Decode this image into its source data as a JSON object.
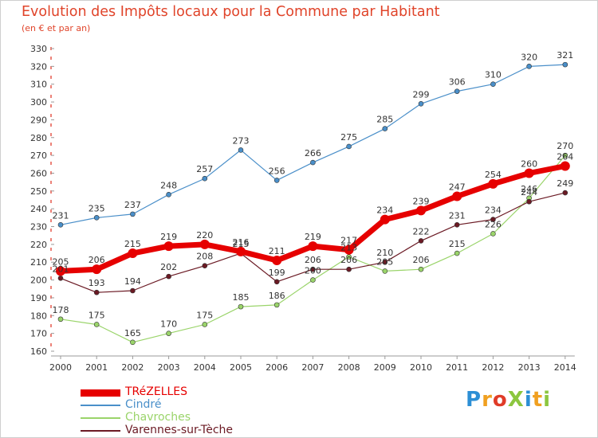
{
  "title": "Evolution des Impôts locaux pour la Commune par Habitant",
  "subtitle": "(en € et par an)",
  "brand": {
    "text": "ProXiti",
    "letters": [
      {
        "ch": "P",
        "color": "#2d8fd5"
      },
      {
        "ch": "r",
        "color": "#f0a020"
      },
      {
        "ch": "o",
        "color": "#e03c28"
      },
      {
        "ch": "X",
        "color": "#8cc63f"
      },
      {
        "ch": "i",
        "color": "#2d8fd5"
      },
      {
        "ch": "t",
        "color": "#f0a020"
      },
      {
        "ch": "i",
        "color": "#8cc63f"
      }
    ]
  },
  "chart_data": {
    "type": "line",
    "title": "Evolution des Impôts locaux pour la Commune par Habitant",
    "subtitle": "(en € et par an)",
    "xlabel": "",
    "ylabel": "",
    "x": [
      "2000",
      "2001",
      "2002",
      "2003",
      "2004",
      "2005",
      "2006",
      "2007",
      "2008",
      "2009",
      "2010",
      "2011",
      "2012",
      "2013",
      "2014"
    ],
    "ylim": [
      160,
      330
    ],
    "yticks": [
      160,
      170,
      180,
      190,
      200,
      210,
      220,
      230,
      240,
      250,
      260,
      270,
      280,
      290,
      300,
      310,
      320,
      330
    ],
    "grid": false,
    "legend": "bottom-left",
    "series": [
      {
        "name": "Cindré",
        "color": "#4a8fc9",
        "values": [
          231,
          235,
          237,
          248,
          257,
          273,
          256,
          266,
          275,
          285,
          299,
          306,
          310,
          320,
          321
        ]
      },
      {
        "name": "Chavroches",
        "color": "#9ad46a",
        "values": [
          178,
          175,
          165,
          170,
          175,
          185,
          186,
          200,
          213,
          205,
          206,
          215,
          226,
          246,
          270
        ]
      },
      {
        "name": "Varennes-sur-Tèche",
        "color": "#6b1a24",
        "values": [
          201,
          193,
          194,
          202,
          208,
          215,
          199,
          206,
          206,
          210,
          222,
          231,
          234,
          244,
          249
        ]
      },
      {
        "name": "TRéZELLES",
        "color": "#e60000",
        "values": [
          205,
          206,
          215,
          219,
          220,
          216,
          211,
          219,
          217,
          234,
          239,
          247,
          254,
          260,
          264
        ]
      }
    ]
  }
}
